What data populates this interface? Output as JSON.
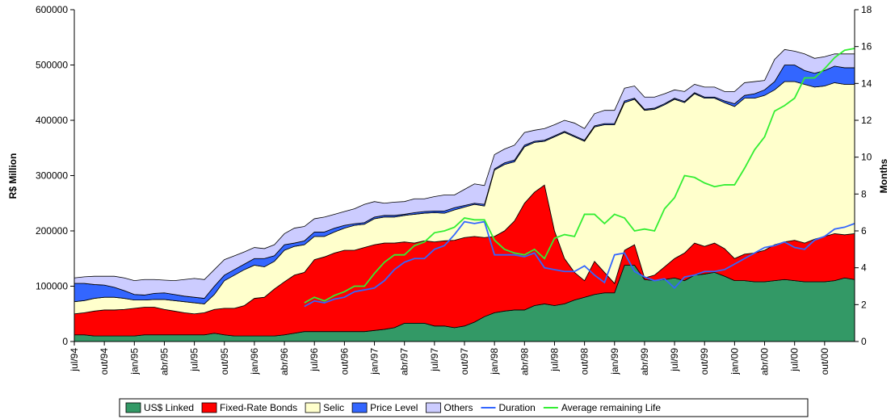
{
  "chart_data": {
    "type": "stacked-area",
    "y_label": "R$ Million",
    "y2_label": "Months",
    "categories": [
      "jul/94",
      null,
      null,
      "out/94",
      null,
      null,
      "jan/95",
      null,
      null,
      "abr/95",
      null,
      null,
      "jul/95",
      null,
      null,
      "out/95",
      null,
      null,
      "jan/96",
      null,
      null,
      "abr/96",
      null,
      null,
      "jul/96",
      null,
      null,
      "out/96",
      null,
      null,
      "jan/97",
      null,
      null,
      "abr/97",
      null,
      null,
      "jul/97",
      null,
      null,
      "out/97",
      null,
      null,
      "jan/98",
      null,
      null,
      "abr/98",
      null,
      null,
      "jul/98",
      null,
      null,
      "out/98",
      null,
      null,
      "jan/99",
      null,
      null,
      "abr/99",
      null,
      null,
      "jul/99",
      null,
      null,
      "out/99",
      null,
      null,
      "jan/00",
      null,
      null,
      "abr/00",
      null,
      null,
      "jul/00",
      null,
      null,
      "out/00",
      null,
      null,
      null
    ],
    "ylim": [
      0,
      600000
    ],
    "yticks": [
      0,
      100000,
      200000,
      300000,
      400000,
      500000,
      600000
    ],
    "y2lim": [
      0,
      18
    ],
    "y2ticks": [
      0,
      2,
      4,
      6,
      8,
      10,
      12,
      14,
      16,
      18
    ],
    "series": [
      {
        "name": "US$ Linked",
        "color": "#339966",
        "stack": true,
        "values": [
          12000,
          12000,
          10000,
          10000,
          10000,
          10000,
          10000,
          12000,
          12000,
          12000,
          12000,
          12000,
          12000,
          12000,
          15000,
          12000,
          10000,
          10000,
          10000,
          10000,
          10000,
          12000,
          15000,
          18000,
          18000,
          18000,
          18000,
          18000,
          18000,
          18000,
          20000,
          22000,
          25000,
          33000,
          33000,
          33000,
          28000,
          28000,
          25000,
          28000,
          35000,
          45000,
          52000,
          55000,
          57000,
          57000,
          65000,
          68000,
          65000,
          68000,
          75000,
          80000,
          85000,
          88000,
          88000,
          138000,
          138000,
          112000,
          110000,
          112000,
          115000,
          110000,
          120000,
          122000,
          125000,
          118000,
          110000,
          110000,
          108000,
          108000,
          110000,
          112000,
          110000,
          108000,
          108000,
          108000,
          110000,
          115000,
          112000
        ]
      },
      {
        "name": "Fixed-Rate Bonds",
        "color": "#ff0000",
        "stack": true,
        "values": [
          38000,
          40000,
          45000,
          47000,
          47000,
          48000,
          50000,
          50000,
          50000,
          46000,
          43000,
          40000,
          38000,
          40000,
          43000,
          48000,
          50000,
          55000,
          68000,
          70000,
          85000,
          96000,
          105000,
          107000,
          130000,
          135000,
          142000,
          147000,
          147000,
          152000,
          155000,
          156000,
          153000,
          147000,
          145000,
          149000,
          152000,
          154000,
          158000,
          160000,
          155000,
          143000,
          138000,
          145000,
          161000,
          193000,
          205000,
          215000,
          135000,
          82000,
          50000,
          30000,
          60000,
          37000,
          17000,
          27000,
          37000,
          3000,
          10000,
          23000,
          35000,
          50000,
          58000,
          50000,
          53000,
          50000,
          40000,
          48000,
          52000,
          57000,
          65000,
          68000,
          73000,
          70000,
          77000,
          82000,
          85000,
          78000,
          83000
        ]
      },
      {
        "name": "Selic",
        "color": "#ffffcc",
        "stack": true,
        "values": [
          22000,
          22000,
          23000,
          23000,
          23000,
          20000,
          15000,
          13000,
          14000,
          18000,
          19000,
          20000,
          20000,
          16000,
          27000,
          50000,
          60000,
          65000,
          60000,
          55000,
          50000,
          57000,
          52000,
          50000,
          42000,
          37000,
          38000,
          40000,
          45000,
          42000,
          47000,
          47000,
          47000,
          48000,
          52000,
          50000,
          53000,
          50000,
          55000,
          55000,
          58000,
          57000,
          120000,
          120000,
          107000,
          102000,
          90000,
          79000,
          170000,
          228000,
          245000,
          252000,
          243000,
          267000,
          287000,
          267000,
          263000,
          303000,
          300000,
          293000,
          288000,
          272000,
          270000,
          268000,
          262000,
          264000,
          275000,
          282000,
          280000,
          280000,
          280000,
          290000,
          287000,
          287000,
          275000,
          272000,
          273000,
          272000,
          270000
        ]
      },
      {
        "name": "Price Level",
        "color": "#3366ff",
        "stack": true,
        "values": [
          33000,
          31000,
          25000,
          22000,
          18000,
          14000,
          10000,
          9000,
          11000,
          12000,
          11000,
          10000,
          10000,
          10000,
          15000,
          10000,
          10000,
          10000,
          12000,
          15000,
          10000,
          10000,
          6000,
          7000,
          8000,
          8000,
          7000,
          5000,
          3000,
          3000,
          3000,
          3000,
          3000,
          2000,
          3000,
          3000,
          3000,
          4000,
          4000,
          3000,
          2000,
          3000,
          2000,
          3000,
          3000,
          3000,
          2000,
          2000,
          2000,
          2000,
          2000,
          2000,
          2000,
          2000,
          2000,
          3000,
          2000,
          2000,
          2000,
          2000,
          2000,
          2000,
          2000,
          2000,
          2000,
          3000,
          5000,
          5000,
          8000,
          10000,
          15000,
          30000,
          30000,
          25000,
          25000,
          28000,
          30000,
          30000,
          30000
        ]
      },
      {
        "name": "Others",
        "color": "#ccccff",
        "stack": true,
        "values": [
          10000,
          12000,
          15000,
          16000,
          20000,
          23000,
          25000,
          28000,
          25000,
          23000,
          25000,
          30000,
          34000,
          34000,
          30000,
          28000,
          25000,
          22000,
          20000,
          18000,
          20000,
          20000,
          27000,
          26000,
          24000,
          27000,
          25000,
          25000,
          27000,
          33000,
          28000,
          22000,
          24000,
          23000,
          25000,
          23000,
          26000,
          29000,
          23000,
          29000,
          35000,
          34000,
          26000,
          25000,
          27000,
          23000,
          20000,
          21000,
          20000,
          20000,
          23000,
          21000,
          22000,
          24000,
          24000,
          23000,
          22000,
          22000,
          20000,
          18000,
          15000,
          18000,
          15000,
          18000,
          18000,
          17000,
          22000,
          23000,
          22000,
          17000,
          40000,
          28000,
          25000,
          30000,
          27000,
          25000,
          22000,
          25000,
          25000
        ]
      },
      {
        "name": "Duration",
        "color": "#3366ff",
        "axis": "y2",
        "values": [
          null,
          null,
          null,
          null,
          null,
          null,
          null,
          null,
          null,
          null,
          null,
          null,
          null,
          null,
          null,
          null,
          null,
          null,
          null,
          null,
          null,
          null,
          null,
          1.9,
          2.2,
          2.1,
          2.3,
          2.4,
          2.7,
          2.8,
          2.9,
          3.3,
          3.9,
          4.3,
          4.5,
          4.5,
          5.0,
          5.2,
          5.8,
          6.5,
          6.4,
          6.5,
          4.7,
          4.7,
          4.7,
          4.6,
          4.8,
          4.0,
          3.9,
          3.8,
          3.8,
          4.1,
          3.6,
          3.2,
          4.7,
          4.8,
          3.8,
          3.5,
          3.3,
          3.4,
          2.9,
          3.5,
          3.6,
          3.8,
          3.8,
          3.9,
          4.2,
          4.5,
          4.8,
          5.1,
          5.2,
          5.4,
          5.1,
          5.0,
          5.5,
          5.7,
          6.1,
          6.2,
          6.4
        ]
      },
      {
        "name": "Average remaining Life",
        "color": "#33ee33",
        "axis": "y2",
        "values": [
          null,
          null,
          null,
          null,
          null,
          null,
          null,
          null,
          null,
          null,
          null,
          null,
          null,
          null,
          null,
          null,
          null,
          null,
          null,
          null,
          null,
          null,
          null,
          2.1,
          2.4,
          2.2,
          2.5,
          2.7,
          3.0,
          3.0,
          3.7,
          4.3,
          4.7,
          4.7,
          5.2,
          5.4,
          5.9,
          6.0,
          6.2,
          6.7,
          6.6,
          6.6,
          5.5,
          5.0,
          4.8,
          4.7,
          5.0,
          4.5,
          5.6,
          5.8,
          5.7,
          6.9,
          6.9,
          6.4,
          6.9,
          6.7,
          6.0,
          6.1,
          6.0,
          7.2,
          7.8,
          9.0,
          8.9,
          8.6,
          8.4,
          8.5,
          8.5,
          9.4,
          10.4,
          11.1,
          12.5,
          12.8,
          13.2,
          14.3,
          14.3,
          14.8,
          15.4,
          15.8,
          15.9
        ]
      }
    ]
  }
}
